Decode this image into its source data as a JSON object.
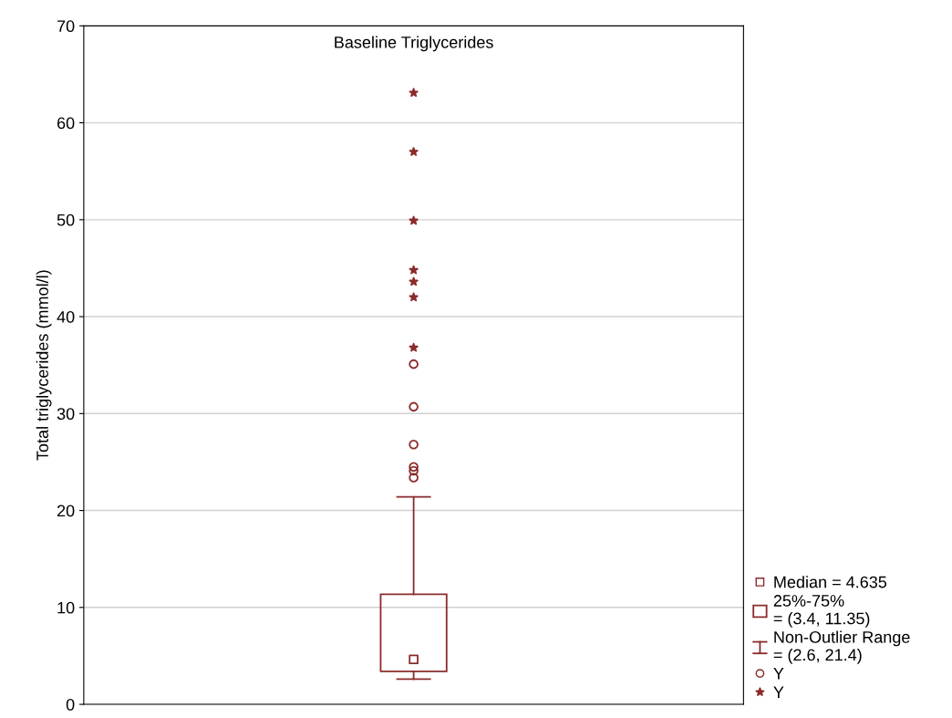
{
  "chart_data": {
    "type": "box",
    "title": "Baseline Triglycerides",
    "ylabel": "Total triglycerides (mmol/l)",
    "categories": [
      null
    ],
    "ylim": [
      0,
      70
    ],
    "yticks": [
      0,
      10,
      20,
      30,
      40,
      50,
      60,
      70
    ],
    "grid": "y",
    "color": "#8b2b2b",
    "boxes": [
      {
        "low": 2.6,
        "q1": 3.4,
        "median": 4.635,
        "q3": 11.35,
        "high": 21.4,
        "outliers": [
          35.1,
          30.7,
          26.8,
          24.5,
          24.1,
          23.4,
          63.1,
          57.0,
          49.9,
          44.8,
          43.6,
          42.0,
          36.8
        ]
      }
    ],
    "annotations": [
      "Median = 4.635",
      "25%-75%\n= (3.4, 11.35)",
      "Non-Outlier Range\n= (2.6, 21.4)",
      "Y",
      "Y"
    ]
  }
}
